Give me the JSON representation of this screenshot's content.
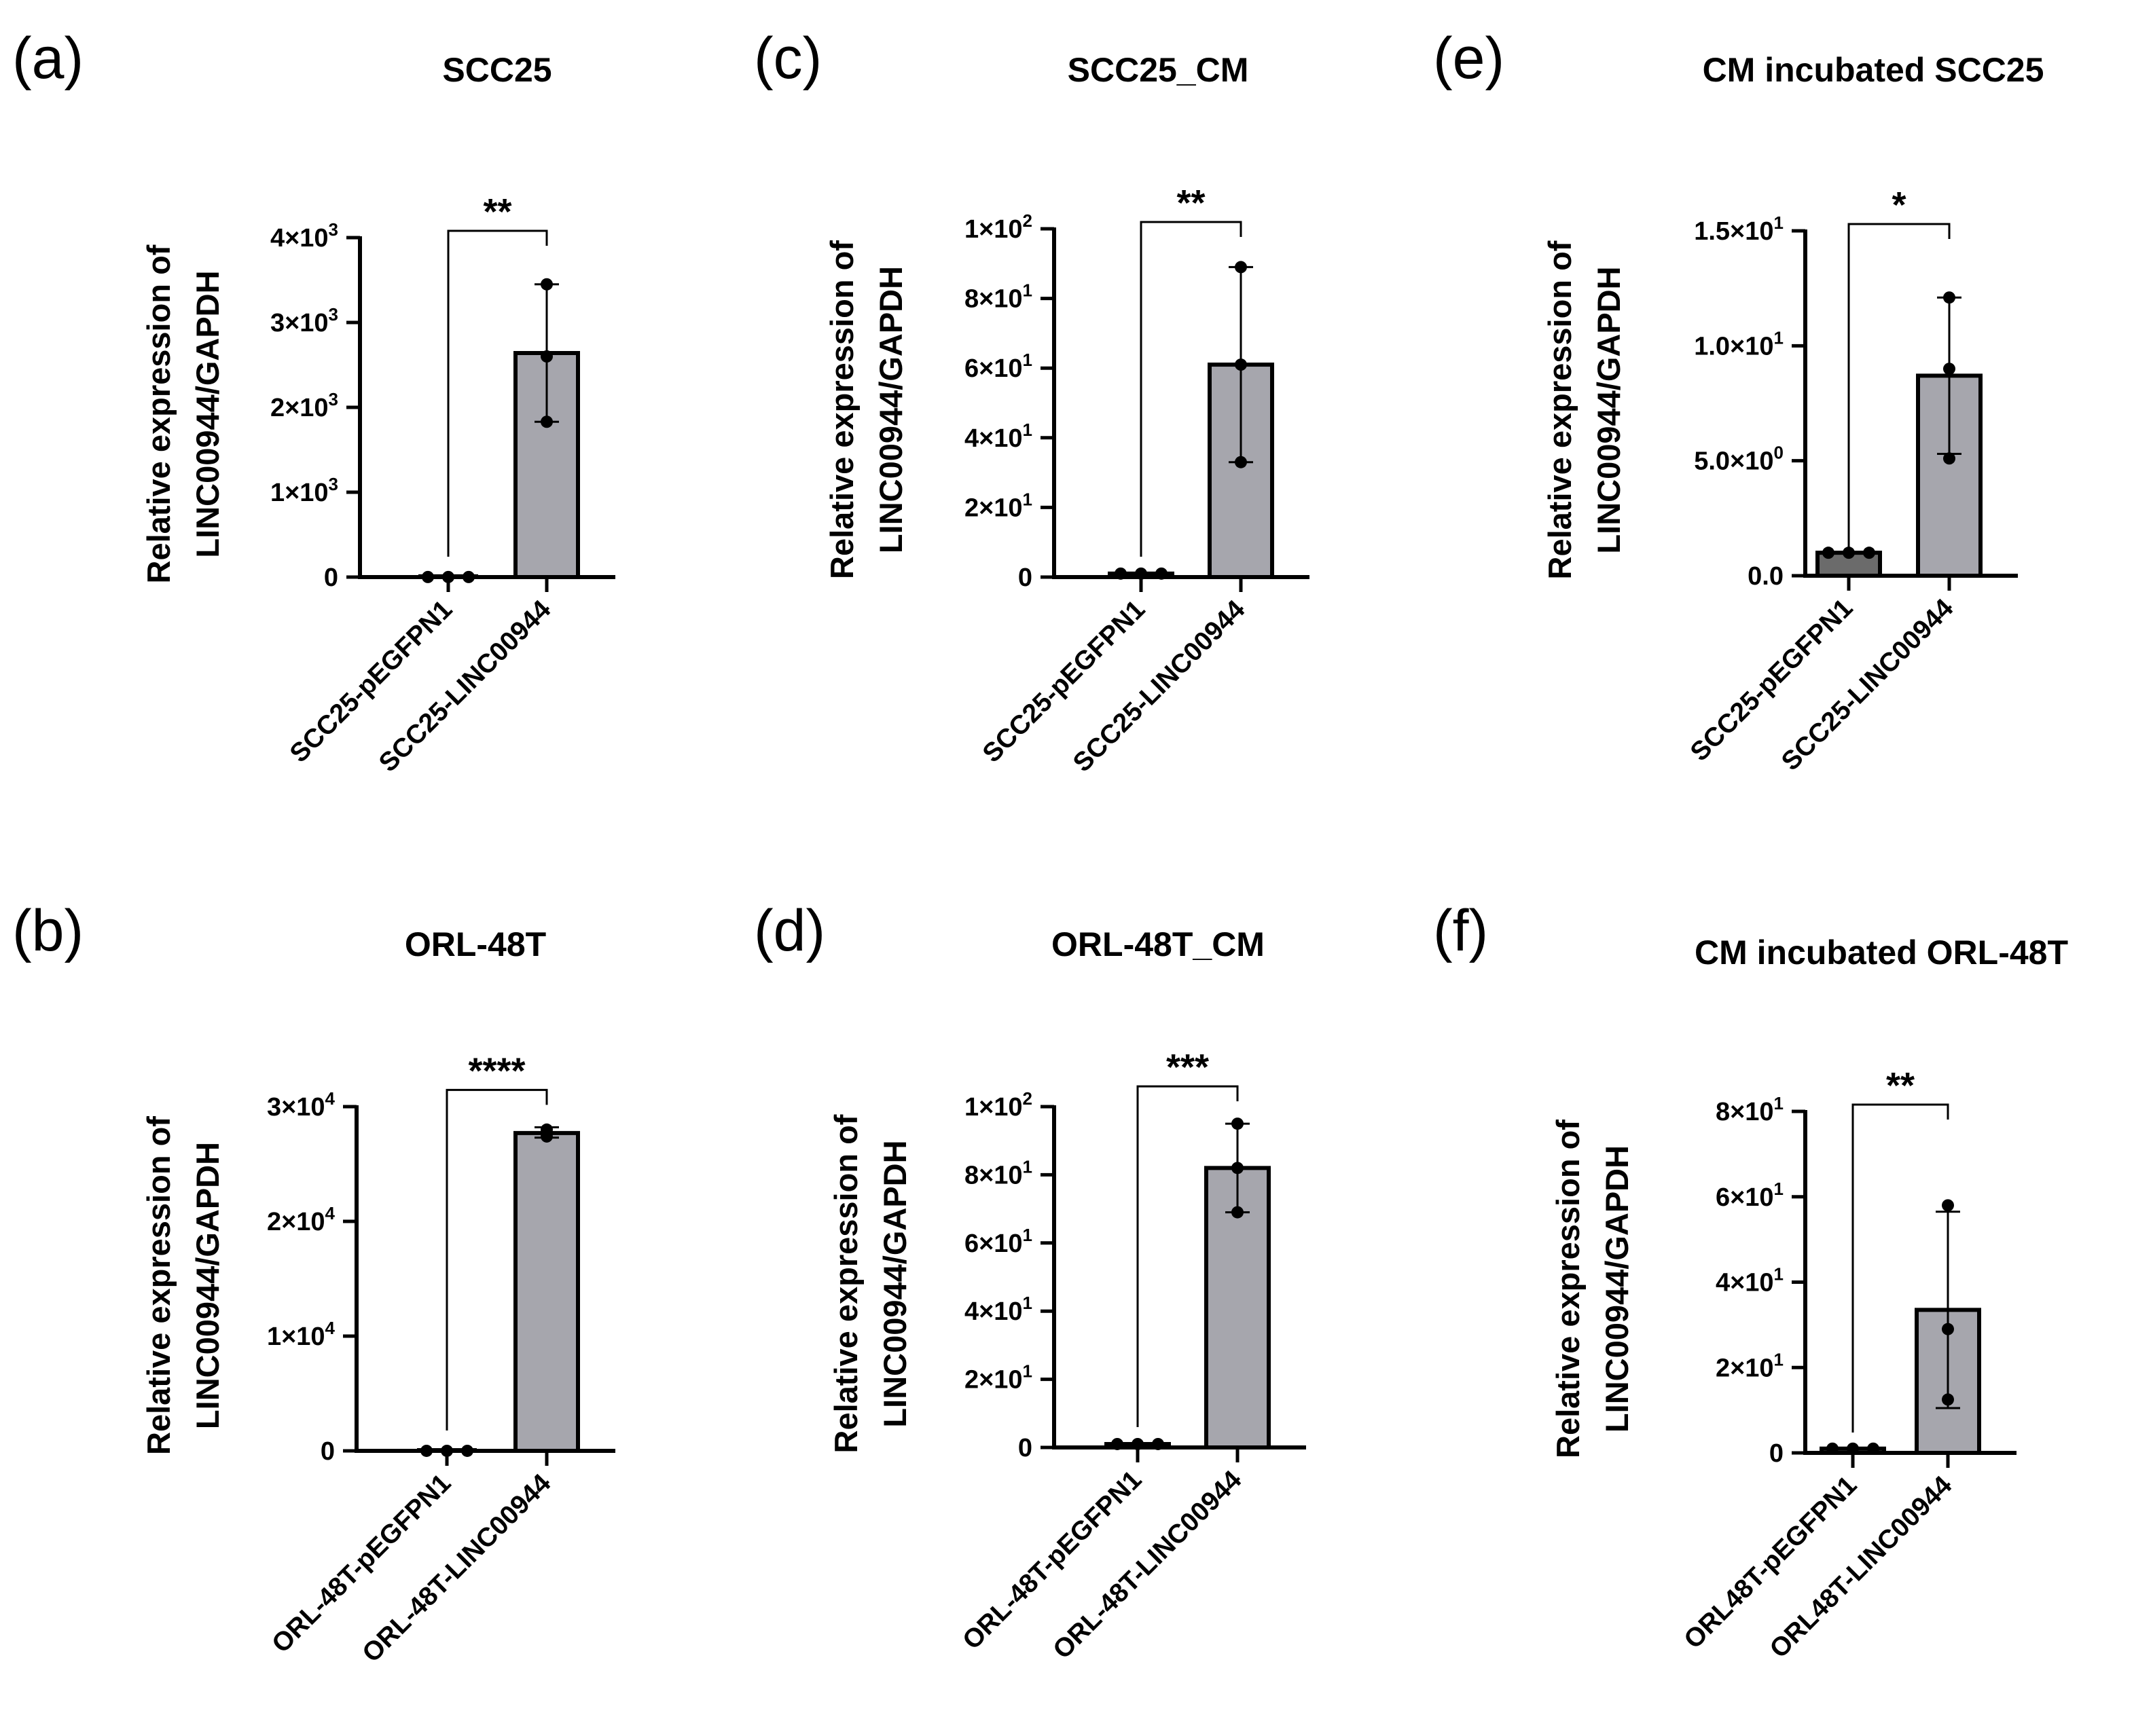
{
  "figure": {
    "bar_fill": "#a6a6ad",
    "control_bar_fill": "#6b6b6b",
    "axis_color": "#000000"
  },
  "chart_data": [
    {
      "panel": "(a)",
      "title": "SCC25",
      "type": "bar",
      "ylabel": [
        "Relative expression of",
        "LINC00944/GAPDH"
      ],
      "ylim": [
        0,
        4000
      ],
      "yticks": [
        {
          "value": 0,
          "mant": "0",
          "exp": ""
        },
        {
          "value": 1000,
          "mant": "1×10",
          "exp": "3"
        },
        {
          "value": 2000,
          "mant": "2×10",
          "exp": "3"
        },
        {
          "value": 3000,
          "mant": "3×10",
          "exp": "3"
        },
        {
          "value": 4000,
          "mant": "4×10",
          "exp": "3"
        }
      ],
      "categories": [
        "SCC25-pEGFPN1",
        "SCC25-LINC00944"
      ],
      "values": [
        1,
        2640
      ],
      "err_low": [
        1,
        1830
      ],
      "err_high": [
        1,
        3450
      ],
      "points": [
        [
          1,
          1,
          1
        ],
        [
          1830,
          2600,
          3450
        ]
      ],
      "significance": "**"
    },
    {
      "panel": "(b)",
      "title": "ORL-48T",
      "type": "bar",
      "ylabel": [
        "Relative expression of",
        "LINC00944/GAPDH"
      ],
      "ylim": [
        0,
        30000
      ],
      "yticks": [
        {
          "value": 0,
          "mant": "0",
          "exp": ""
        },
        {
          "value": 10000,
          "mant": "1×10",
          "exp": "4"
        },
        {
          "value": 20000,
          "mant": "2×10",
          "exp": "4"
        },
        {
          "value": 30000,
          "mant": "3×10",
          "exp": "4"
        }
      ],
      "categories": [
        "ORL-48T-pEGFPN1",
        "ORL-48T-LINC00944"
      ],
      "values": [
        1,
        27700
      ],
      "err_low": [
        1,
        27300
      ],
      "err_high": [
        1,
        28200
      ],
      "points": [
        [
          1,
          1,
          1
        ],
        [
          27400,
          28000,
          27700
        ]
      ],
      "significance": "****"
    },
    {
      "panel": "(c)",
      "title": "SCC25_CM",
      "type": "bar",
      "ylabel": [
        "Relative expression of",
        "LINC00944/GAPDH"
      ],
      "ylim": [
        0,
        100
      ],
      "yticks": [
        {
          "value": 0,
          "mant": "0",
          "exp": ""
        },
        {
          "value": 20,
          "mant": "2×10",
          "exp": "1"
        },
        {
          "value": 40,
          "mant": "4×10",
          "exp": "1"
        },
        {
          "value": 60,
          "mant": "6×10",
          "exp": "1"
        },
        {
          "value": 80,
          "mant": "8×10",
          "exp": "1"
        },
        {
          "value": 100,
          "mant": "1×10",
          "exp": "2"
        }
      ],
      "categories": [
        "SCC25-pEGFPN1",
        "SCC25-LINC00944"
      ],
      "values": [
        1,
        61
      ],
      "err_low": [
        1,
        33
      ],
      "err_high": [
        1,
        89
      ],
      "points": [
        [
          1,
          1,
          1
        ],
        [
          33,
          61,
          89
        ]
      ],
      "significance": "**"
    },
    {
      "panel": "(d)",
      "title": "ORL-48T_CM",
      "type": "bar",
      "ylabel": [
        "Relative expression of",
        "LINC00944/GAPDH"
      ],
      "ylim": [
        0,
        100
      ],
      "yticks": [
        {
          "value": 0,
          "mant": "0",
          "exp": ""
        },
        {
          "value": 20,
          "mant": "2×10",
          "exp": "1"
        },
        {
          "value": 40,
          "mant": "4×10",
          "exp": "1"
        },
        {
          "value": 60,
          "mant": "6×10",
          "exp": "1"
        },
        {
          "value": 80,
          "mant": "8×10",
          "exp": "1"
        },
        {
          "value": 100,
          "mant": "1×10",
          "exp": "2"
        }
      ],
      "categories": [
        "ORL-48T-pEGFPN1",
        "ORL-48T-LINC00944"
      ],
      "values": [
        1,
        82
      ],
      "err_low": [
        1,
        69
      ],
      "err_high": [
        1,
        95
      ],
      "points": [
        [
          1,
          1,
          1
        ],
        [
          69,
          82,
          95
        ]
      ],
      "significance": "***"
    },
    {
      "panel": "(e)",
      "title": "CM incubated SCC25",
      "type": "bar",
      "ylabel": [
        "Relative expression of",
        "LINC00944/GAPDH"
      ],
      "ylim": [
        0,
        15
      ],
      "yticks": [
        {
          "value": 0,
          "mant": "0.0",
          "exp": ""
        },
        {
          "value": 5,
          "mant": "5.0×10",
          "exp": "0"
        },
        {
          "value": 10,
          "mant": "1.0×10",
          "exp": "1"
        },
        {
          "value": 15,
          "mant": "1.5×10",
          "exp": "1"
        }
      ],
      "categories": [
        "SCC25-pEGFPN1",
        "SCC25-LINC00944"
      ],
      "values": [
        1,
        8.7
      ],
      "err_low": [
        1,
        5.3
      ],
      "err_high": [
        1,
        12.1
      ],
      "points": [
        [
          1,
          1,
          1
        ],
        [
          5.1,
          9.0,
          12.1
        ]
      ],
      "significance": "*"
    },
    {
      "panel": "(f)",
      "title": "CM incubated ORL-48T",
      "type": "bar",
      "ylabel": [
        "Relative expression of",
        "LINC00944/GAPDH"
      ],
      "ylim": [
        0,
        80
      ],
      "yticks": [
        {
          "value": 0,
          "mant": "0",
          "exp": ""
        },
        {
          "value": 20,
          "mant": "2×10",
          "exp": "1"
        },
        {
          "value": 40,
          "mant": "4×10",
          "exp": "1"
        },
        {
          "value": 60,
          "mant": "6×10",
          "exp": "1"
        },
        {
          "value": 80,
          "mant": "8×10",
          "exp": "1"
        }
      ],
      "categories": [
        "ORL48T-pEGFPN1",
        "ORL48T-LINC00944"
      ],
      "values": [
        1,
        33.5
      ],
      "err_low": [
        1,
        10.5
      ],
      "err_high": [
        1,
        56.5
      ],
      "points": [
        [
          1,
          1,
          1
        ],
        [
          12.5,
          29,
          58
        ]
      ],
      "significance": "**"
    }
  ]
}
